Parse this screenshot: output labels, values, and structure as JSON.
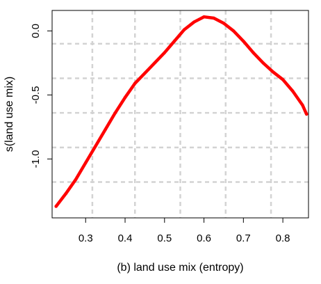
{
  "chart_data": {
    "type": "line",
    "title": "",
    "xlabel": "(b) land use mix (entropy)",
    "ylabel": "s(land use mix)",
    "xlim": [
      0.215,
      0.865
    ],
    "ylim": [
      -1.46,
      0.16
    ],
    "xticks": [
      0.3,
      0.4,
      0.5,
      0.6,
      0.7,
      0.8
    ],
    "xtick_labels": [
      "0.3",
      "0.4",
      "0.5",
      "0.6",
      "0.7",
      "0.8"
    ],
    "yticks": [
      0.0,
      -0.5,
      -1.0
    ],
    "ytick_labels": [
      "0.0",
      "-0.5",
      "-1.0"
    ],
    "grid": true,
    "grid_x": [
      0.317,
      0.425,
      0.54,
      0.655,
      0.77
    ],
    "grid_y": [
      -0.1,
      -0.37,
      -0.64,
      -0.91,
      -1.18
    ],
    "legend": "none",
    "colors": {
      "line": "#ff0000",
      "grid": "#d3d3d3",
      "frame": "#000000"
    },
    "series": [
      {
        "x": [
          0.225,
          0.25,
          0.275,
          0.3,
          0.325,
          0.35,
          0.375,
          0.4,
          0.425,
          0.45,
          0.475,
          0.5,
          0.525,
          0.55,
          0.575,
          0.6,
          0.625,
          0.65,
          0.675,
          0.7,
          0.725,
          0.75,
          0.775,
          0.8,
          0.825,
          0.85,
          0.86
        ],
        "y": [
          -1.37,
          -1.27,
          -1.16,
          -1.03,
          -0.9,
          -0.77,
          -0.64,
          -0.52,
          -0.41,
          -0.33,
          -0.25,
          -0.17,
          -0.08,
          0.01,
          0.07,
          0.11,
          0.1,
          0.06,
          0.0,
          -0.08,
          -0.17,
          -0.25,
          -0.32,
          -0.38,
          -0.47,
          -0.58,
          -0.65
        ]
      }
    ]
  }
}
